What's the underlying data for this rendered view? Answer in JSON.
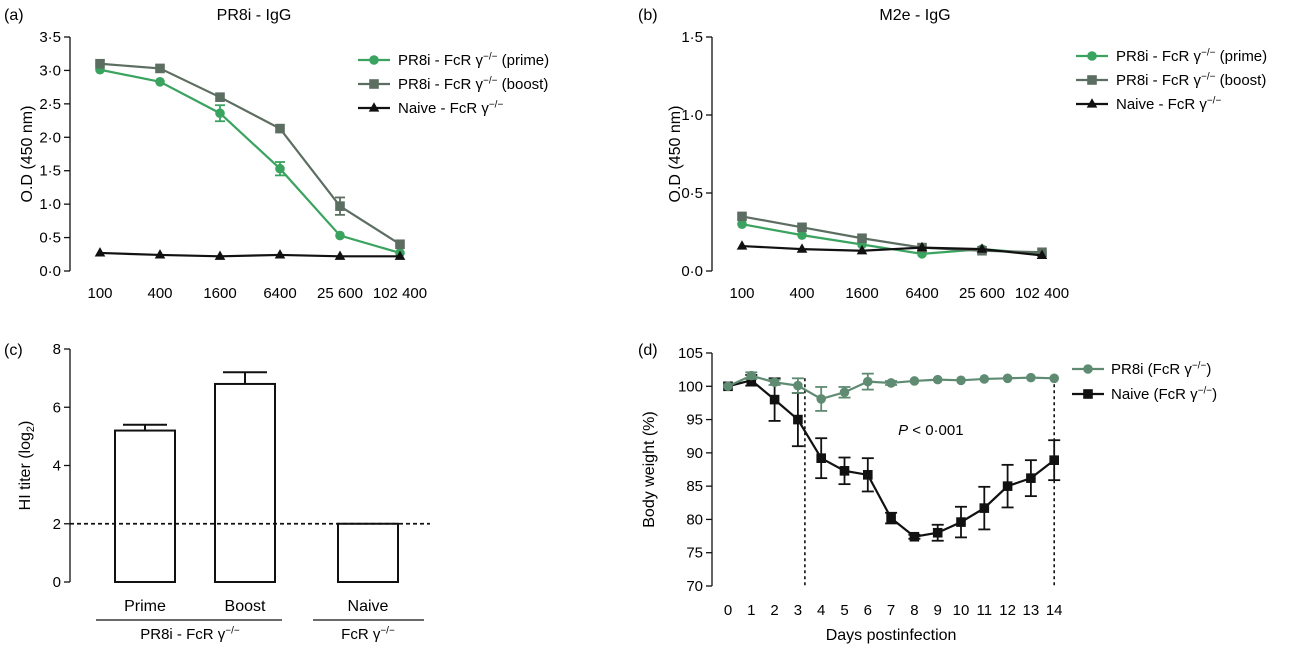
{
  "colors": {
    "green": "#3aa35f",
    "gray": "#5c6d61",
    "black": "#111111",
    "weight_green": "#5f8b72"
  },
  "chart_data": [
    {
      "panel": "(a)",
      "type": "line",
      "title": "PR8i - IgG",
      "ylabel": "O.D (450 nm)",
      "xlabel": "",
      "categories": [
        "100",
        "400",
        "1600",
        "6400",
        "25 600",
        "102 400"
      ],
      "yticks": [
        "0·0",
        "0·5",
        "1·0",
        "1·5",
        "2·0",
        "2·5",
        "3·0",
        "3·5"
      ],
      "ylim": [
        0,
        3.5
      ],
      "legend_position": "top-right",
      "series": [
        {
          "name": "PR8i - FcR γ−/− (prime)",
          "marker": "circle",
          "color": "green",
          "values": [
            3.01,
            2.83,
            2.36,
            1.53,
            0.53,
            0.27
          ],
          "errors": [
            0.03,
            0.03,
            0.12,
            0.1,
            0.03,
            0.03
          ]
        },
        {
          "name": "PR8i - FcR γ−/− (boost)",
          "marker": "square",
          "color": "gray",
          "values": [
            3.1,
            3.03,
            2.6,
            2.13,
            0.97,
            0.4
          ],
          "errors": [
            0.03,
            0.03,
            0.04,
            0.03,
            0.13,
            0.04
          ]
        },
        {
          "name": "Naive - FcR γ−/−",
          "marker": "triangle",
          "color": "black",
          "values": [
            0.27,
            0.24,
            0.22,
            0.24,
            0.22,
            0.22
          ],
          "errors": [
            0,
            0,
            0,
            0,
            0,
            0
          ]
        }
      ]
    },
    {
      "panel": "(b)",
      "type": "line",
      "title": "M2e - IgG",
      "ylabel": "O.D (450 nm)",
      "xlabel": "",
      "categories": [
        "100",
        "400",
        "1600",
        "6400",
        "25 600",
        "102 400"
      ],
      "yticks": [
        "0·0",
        "0·5",
        "1·0",
        "1·5"
      ],
      "ylim": [
        0,
        1.5
      ],
      "legend_position": "top-right",
      "series": [
        {
          "name": "PR8i - FcR γ−/− (prime)",
          "marker": "circle",
          "color": "green",
          "values": [
            0.3,
            0.23,
            0.17,
            0.11,
            0.14,
            0.11
          ],
          "errors": [
            0,
            0,
            0,
            0,
            0,
            0
          ]
        },
        {
          "name": "PR8i - FcR γ−/− (boost)",
          "marker": "square",
          "color": "gray",
          "values": [
            0.35,
            0.28,
            0.21,
            0.15,
            0.13,
            0.12
          ],
          "errors": [
            0,
            0,
            0,
            0,
            0,
            0
          ]
        },
        {
          "name": "Naive - FcR γ−/−",
          "marker": "triangle",
          "color": "black",
          "values": [
            0.16,
            0.14,
            0.13,
            0.15,
            0.14,
            0.1
          ],
          "errors": [
            0,
            0,
            0,
            0,
            0,
            0
          ]
        }
      ]
    },
    {
      "panel": "(c)",
      "type": "bar",
      "ylabel": "HI titer (log2)",
      "yticks": [
        "0",
        "2",
        "4",
        "6",
        "8"
      ],
      "ylim": [
        0,
        8
      ],
      "categories": [
        "Prime",
        "Boost",
        "Naive"
      ],
      "values": [
        5.2,
        6.8,
        2.0
      ],
      "errors": [
        0.2,
        0.4,
        0
      ],
      "threshold": 2,
      "groups": [
        {
          "label": "PR8i - FcR γ−/−",
          "members": [
            "Prime",
            "Boost"
          ]
        },
        {
          "label": "FcR γ−/−",
          "members": [
            "Naive"
          ]
        }
      ]
    },
    {
      "panel": "(d)",
      "type": "line",
      "ylabel": "Body weight (%)",
      "xlabel": "Days postinfection",
      "x": [
        0,
        1,
        2,
        3,
        4,
        5,
        6,
        7,
        8,
        9,
        10,
        11,
        12,
        13,
        14
      ],
      "xticks": [
        "0",
        "1",
        "2",
        "3",
        "4",
        "5",
        "6",
        "7",
        "8",
        "9",
        "10",
        "11",
        "12",
        "13",
        "14"
      ],
      "yticks": [
        "70",
        "75",
        "80",
        "85",
        "90",
        "95",
        "100",
        "105"
      ],
      "ylim": [
        70,
        105
      ],
      "xlim": [
        0,
        14
      ],
      "legend_position": "top-right",
      "annotation": {
        "p_italic": "P",
        "rest": " < 0·001"
      },
      "vlines": [
        3.3,
        14
      ],
      "series": [
        {
          "name": "PR8i (FcR γ−/−)",
          "marker": "circle",
          "color": "weight_green",
          "values": [
            100,
            101.6,
            100.6,
            100.1,
            98.1,
            99.1,
            100.7,
            100.5,
            100.8,
            101.0,
            100.9,
            101.1,
            101.2,
            101.3,
            101.2
          ],
          "errors": [
            0,
            0.5,
            0.4,
            1.1,
            1.8,
            0.8,
            1.2,
            0.3,
            0,
            0,
            0,
            0,
            0,
            0,
            0
          ]
        },
        {
          "name": "Naive (FcR γ−/−)",
          "marker": "square",
          "color": "black",
          "values": [
            100,
            100.9,
            98.0,
            95.0,
            89.2,
            87.3,
            86.7,
            80.2,
            77.4,
            78.0,
            79.6,
            81.7,
            85.0,
            86.2,
            88.9
          ],
          "errors": [
            0,
            0.8,
            3.2,
            4.0,
            3.0,
            2.0,
            2.5,
            0.8,
            0.3,
            1.2,
            2.3,
            3.2,
            3.2,
            2.7,
            3.0
          ]
        }
      ]
    }
  ]
}
